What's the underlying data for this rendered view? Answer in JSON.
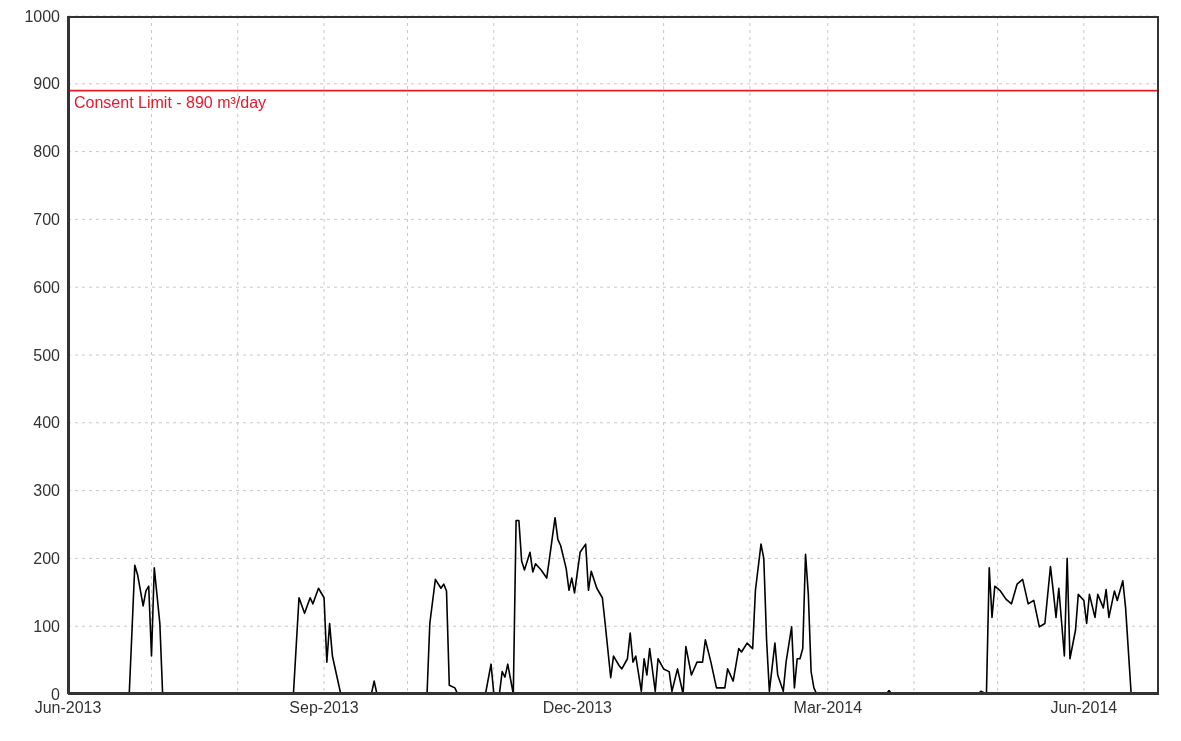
{
  "chart_data": {
    "type": "line",
    "x": [
      "2013-06-01",
      "2013-06-23",
      "2013-06-24",
      "2013-06-25",
      "2013-06-26",
      "2013-06-28",
      "2013-06-29",
      "2013-06-30",
      "2013-07-01",
      "2013-07-02",
      "2013-07-04",
      "2013-07-05",
      "2013-08-21",
      "2013-08-23",
      "2013-08-25",
      "2013-08-27",
      "2013-08-28",
      "2013-08-30",
      "2013-09-01",
      "2013-09-02",
      "2013-09-03",
      "2013-09-04",
      "2013-09-07",
      "2013-09-18",
      "2013-09-19",
      "2013-09-20",
      "2013-10-08",
      "2013-10-09",
      "2013-10-11",
      "2013-10-13",
      "2013-10-14",
      "2013-10-15",
      "2013-10-16",
      "2013-10-18",
      "2013-10-19",
      "2013-10-29",
      "2013-10-31",
      "2013-11-01",
      "2013-11-03",
      "2013-11-04",
      "2013-11-05",
      "2013-11-06",
      "2013-11-08",
      "2013-11-09",
      "2013-11-10",
      "2013-11-11",
      "2013-11-12",
      "2013-11-14",
      "2013-11-15",
      "2013-11-16",
      "2013-11-18",
      "2013-11-20",
      "2013-11-21",
      "2013-11-23",
      "2013-11-24",
      "2013-11-25",
      "2013-11-27",
      "2013-11-28",
      "2013-11-29",
      "2013-11-30",
      "2013-12-02",
      "2013-12-04",
      "2013-12-05",
      "2013-12-06",
      "2013-12-08",
      "2013-12-10",
      "2013-12-11",
      "2013-12-13",
      "2013-12-14",
      "2013-12-16",
      "2013-12-17",
      "2013-12-19",
      "2013-12-20",
      "2013-12-21",
      "2013-12-22",
      "2013-12-24",
      "2013-12-25",
      "2013-12-26",
      "2013-12-27",
      "2013-12-29",
      "2013-12-30",
      "2014-01-01",
      "2014-01-03",
      "2014-01-04",
      "2014-01-06",
      "2014-01-08",
      "2014-01-09",
      "2014-01-11",
      "2014-01-13",
      "2014-01-15",
      "2014-01-16",
      "2014-01-18",
      "2014-01-20",
      "2014-01-23",
      "2014-01-24",
      "2014-01-26",
      "2014-01-28",
      "2014-01-29",
      "2014-01-31",
      "2014-02-02",
      "2014-02-03",
      "2014-02-05",
      "2014-02-06",
      "2014-02-07",
      "2014-02-08",
      "2014-02-10",
      "2014-02-11",
      "2014-02-13",
      "2014-02-14",
      "2014-02-16",
      "2014-02-17",
      "2014-02-18",
      "2014-02-19",
      "2014-02-20",
      "2014-02-21",
      "2014-02-22",
      "2014-02-23",
      "2014-02-24",
      "2014-02-25",
      "2014-03-22",
      "2014-03-23",
      "2014-03-24",
      "2014-04-24",
      "2014-04-25",
      "2014-04-27",
      "2014-04-28",
      "2014-04-29",
      "2014-04-30",
      "2014-05-02",
      "2014-05-04",
      "2014-05-06",
      "2014-05-08",
      "2014-05-10",
      "2014-05-12",
      "2014-05-14",
      "2014-05-16",
      "2014-05-18",
      "2014-05-20",
      "2014-05-21",
      "2014-05-22",
      "2014-05-23",
      "2014-05-25",
      "2014-05-26",
      "2014-05-27",
      "2014-05-29",
      "2014-05-30",
      "2014-06-01",
      "2014-06-02",
      "2014-06-03",
      "2014-06-05",
      "2014-06-06",
      "2014-06-08",
      "2014-06-09",
      "2014-06-10",
      "2014-06-12",
      "2014-06-13",
      "2014-06-15",
      "2014-06-16",
      "2014-06-18",
      "2014-06-28"
    ],
    "series": [
      {
        "color": "#000000",
        "values": [
          0,
          0,
          94,
          190,
          176,
          130,
          152,
          159,
          56,
          186,
          104,
          0,
          0,
          142,
          119,
          142,
          133,
          156,
          142,
          47,
          104,
          56,
          0,
          0,
          19,
          0,
          0,
          104,
          169,
          156,
          162,
          152,
          13,
          9,
          0,
          0,
          44,
          0,
          0,
          33,
          25,
          44,
          0,
          256,
          256,
          196,
          183,
          209,
          180,
          192,
          183,
          171,
          200,
          260,
          228,
          219,
          185,
          153,
          171,
          149,
          209,
          221,
          153,
          181,
          156,
          142,
          104,
          24,
          56,
          42,
          37,
          52,
          90,
          47,
          56,
          4,
          52,
          28,
          67,
          4,
          52,
          37,
          33,
          4,
          37,
          0,
          70,
          28,
          47,
          47,
          80,
          47,
          9,
          9,
          37,
          19,
          67,
          62,
          75,
          67,
          153,
          221,
          200,
          80,
          4,
          75,
          28,
          4,
          47,
          99,
          9,
          52,
          52,
          67,
          206,
          147,
          33,
          9,
          0,
          0,
          5,
          0,
          0,
          4,
          0,
          186,
          113,
          159,
          152,
          140,
          133,
          162,
          169,
          133,
          138,
          99,
          104,
          188,
          152,
          113,
          156,
          56,
          200,
          52,
          94,
          147,
          138,
          104,
          147,
          113,
          147,
          127,
          154,
          113,
          152,
          138,
          167,
          127,
          0,
          0
        ]
      }
    ],
    "xlim": [
      "2013-06-01",
      "2014-06-28"
    ],
    "xticks": [
      {
        "value": "2013-06-01",
        "label": "Jun-2013"
      },
      {
        "value": "2013-07-01",
        "label": null
      },
      {
        "value": "2013-08-01",
        "label": null
      },
      {
        "value": "2013-09-01",
        "label": "Sep-2013"
      },
      {
        "value": "2013-10-01",
        "label": null
      },
      {
        "value": "2013-11-01",
        "label": null
      },
      {
        "value": "2013-12-01",
        "label": "Dec-2013"
      },
      {
        "value": "2014-01-01",
        "label": null
      },
      {
        "value": "2014-02-01",
        "label": null
      },
      {
        "value": "2014-03-01",
        "label": "Mar-2014"
      },
      {
        "value": "2014-04-01",
        "label": null
      },
      {
        "value": "2014-05-01",
        "label": null
      },
      {
        "value": "2014-06-01",
        "label": "Jun-2014"
      }
    ],
    "ylim": [
      0,
      1000
    ],
    "yticks": [
      0,
      100,
      200,
      300,
      400,
      500,
      600,
      700,
      800,
      900,
      1000
    ],
    "grid": true,
    "marker": "none",
    "line_style": "solid",
    "ref_lines": [
      {
        "axis": "y",
        "value": 890,
        "label": "Consent Limit - 890 m³/day",
        "color": "#e8192c"
      }
    ]
  }
}
